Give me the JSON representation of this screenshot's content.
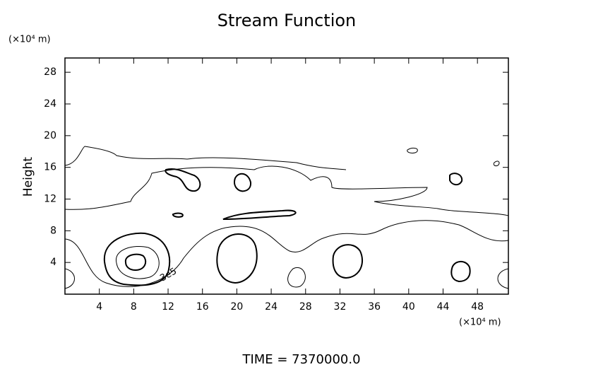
{
  "chart_data": {
    "type": "contour",
    "title": "Stream Function",
    "y_unit_label": "(×10⁴ m)",
    "x_unit_label": "(×10⁴ m)",
    "ylabel": "Height",
    "footer": "TIME = 7370000.0",
    "contour_label": "3e5",
    "xlim": [
      0,
      51.6
    ],
    "xticks": [
      4,
      8,
      12,
      16,
      20,
      24,
      28,
      32,
      36,
      40,
      44,
      48
    ],
    "ylim": [
      0,
      29.8
    ],
    "yticks": [
      4,
      8,
      12,
      16,
      20,
      24,
      28
    ]
  }
}
